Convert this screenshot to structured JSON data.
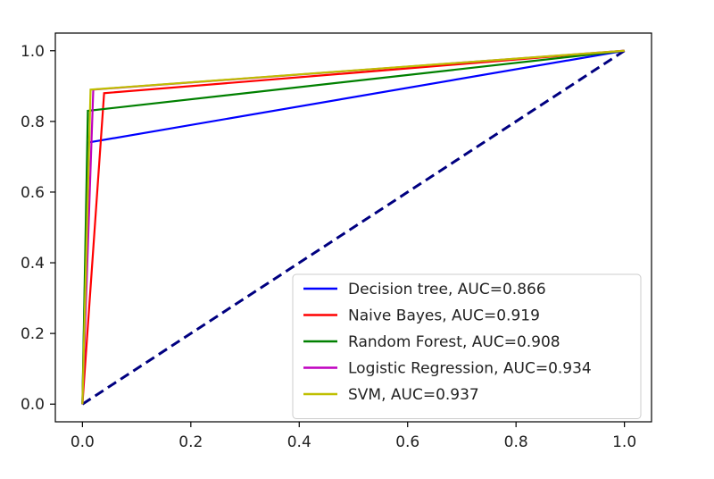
{
  "chart_data": {
    "type": "line",
    "title": "",
    "xlabel": "",
    "ylabel": "",
    "xlim": [
      -0.05,
      1.05
    ],
    "ylim": [
      -0.05,
      1.05
    ],
    "xticks": [
      0.0,
      0.2,
      0.4,
      0.6,
      0.8,
      1.0
    ],
    "yticks": [
      0.0,
      0.2,
      0.4,
      0.6,
      0.8,
      1.0
    ],
    "xtick_labels": [
      "0.0",
      "0.2",
      "0.4",
      "0.6",
      "0.8",
      "1.0"
    ],
    "ytick_labels": [
      "0.0",
      "0.2",
      "0.4",
      "0.6",
      "0.8",
      "1.0"
    ],
    "grid": false,
    "legend_position": "lower-right",
    "series": [
      {
        "name": "Decision tree, AUC=0.866",
        "color": "#0000ff",
        "x": [
          0,
          0.01,
          1
        ],
        "y": [
          0,
          0.74,
          1
        ]
      },
      {
        "name": "Naive Bayes, AUC=0.919",
        "color": "#ff0000",
        "x": [
          0,
          0.04,
          1
        ],
        "y": [
          0,
          0.88,
          1
        ]
      },
      {
        "name": "Random Forest, AUC=0.908",
        "color": "#008000",
        "x": [
          0,
          0.01,
          1
        ],
        "y": [
          0,
          0.83,
          1
        ]
      },
      {
        "name": "Logistic Regression, AUC=0.934",
        "color": "#bf00bf",
        "x": [
          0,
          0.02,
          1
        ],
        "y": [
          0,
          0.89,
          1
        ]
      },
      {
        "name": "SVM, AUC=0.937",
        "color": "#bfbf00",
        "x": [
          0,
          0.015,
          1
        ],
        "y": [
          0,
          0.89,
          1
        ]
      }
    ],
    "reference_line": {
      "style": "dashed",
      "color": "#000080",
      "x": [
        0,
        1
      ],
      "y": [
        0,
        1
      ]
    }
  }
}
